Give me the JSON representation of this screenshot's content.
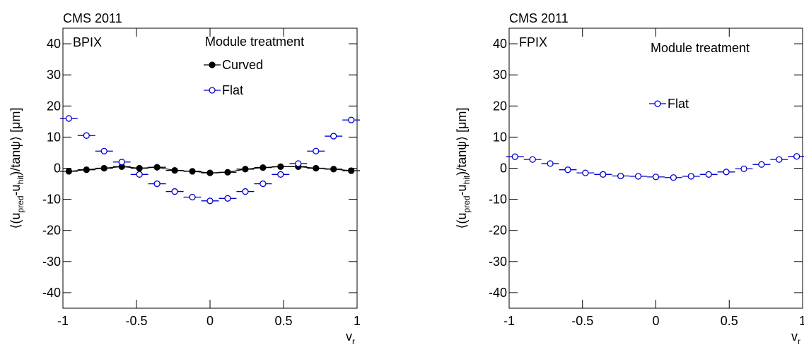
{
  "chart_data": [
    {
      "type": "scatter",
      "header": "CMS 2011",
      "label": "BPIX",
      "legend_title": "Module treatment",
      "ylabel": [
        "⟨(u",
        "pred",
        "-u",
        "hit",
        ")/tanψ⟩ [μm]"
      ],
      "xlabel": [
        "v",
        "r"
      ],
      "x": [
        -0.96,
        -0.84,
        -0.72,
        -0.6,
        -0.48,
        -0.36,
        -0.24,
        -0.12,
        0,
        0.12,
        0.24,
        0.36,
        0.48,
        0.6,
        0.72,
        0.84,
        0.96
      ],
      "xerr": 0.06,
      "series": [
        {
          "name": "Curved",
          "color": "#000000",
          "marker": "filled",
          "line": true,
          "yerr": 0.8,
          "values": [
            -1,
            -0.5,
            0,
            0.5,
            0,
            0.3,
            -0.7,
            -1,
            -1.5,
            -1.3,
            -0.3,
            0.2,
            0.5,
            0.5,
            0,
            -0.3,
            -0.8
          ]
        },
        {
          "name": "Flat",
          "color": "#0000cc",
          "marker": "open",
          "line": false,
          "yerr": 0.8,
          "values": [
            16,
            10.5,
            5.5,
            2,
            -2,
            -5,
            -7.5,
            -9.3,
            -10.5,
            -9.7,
            -7.5,
            -5,
            -2,
            1.5,
            5.5,
            10.3,
            15.5
          ]
        }
      ],
      "xlim": [
        -1,
        1
      ],
      "ylim": [
        -45,
        45
      ],
      "xticks": [
        -1,
        -0.5,
        0,
        0.5,
        1
      ],
      "yticks": [
        -40,
        -30,
        -20,
        -10,
        0,
        10,
        20,
        30,
        40
      ]
    },
    {
      "type": "scatter",
      "header": "CMS 2011",
      "label": "FPIX",
      "legend_title": "Module treatment",
      "ylabel": [
        "⟨(u",
        "pred",
        "-u",
        "hit",
        ")/tanψ⟩ [μm]"
      ],
      "xlabel": [
        "v",
        "r"
      ],
      "x": [
        -0.96,
        -0.84,
        -0.72,
        -0.6,
        -0.48,
        -0.36,
        -0.24,
        -0.12,
        0,
        0.12,
        0.24,
        0.36,
        0.48,
        0.6,
        0.72,
        0.84,
        0.96
      ],
      "xerr": 0.06,
      "series": [
        {
          "name": "Flat",
          "color": "#0000cc",
          "marker": "open",
          "line": false,
          "yerr": 0.5,
          "values": [
            3.7,
            2.8,
            1.5,
            -0.5,
            -1.5,
            -2,
            -2.5,
            -2.6,
            -2.8,
            -3,
            -2.6,
            -2,
            -1.2,
            -0.2,
            1.2,
            2.8,
            3.8
          ]
        }
      ],
      "xlim": [
        -1,
        1
      ],
      "ylim": [
        -45,
        45
      ],
      "xticks": [
        -1,
        -0.5,
        0,
        0.5,
        1
      ],
      "yticks": [
        -40,
        -30,
        -20,
        -10,
        0,
        10,
        20,
        30,
        40
      ]
    }
  ]
}
